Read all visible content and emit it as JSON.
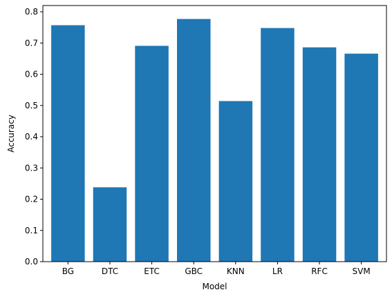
{
  "chart_data": {
    "type": "bar",
    "title": "",
    "xlabel": "Model",
    "ylabel": "Accuracy",
    "categories": [
      "BG",
      "DTC",
      "ETC",
      "GBC",
      "KNN",
      "LR",
      "RFC",
      "SVM"
    ],
    "values": [
      0.757,
      0.238,
      0.691,
      0.777,
      0.514,
      0.748,
      0.686,
      0.666
    ],
    "ylim": [
      0,
      0.82
    ],
    "yticks": [
      "0.0",
      "0.1",
      "0.2",
      "0.3",
      "0.4",
      "0.5",
      "0.6",
      "0.7",
      "0.8"
    ],
    "bar_color": "#1f77b4",
    "grid": false,
    "legend": "none"
  }
}
